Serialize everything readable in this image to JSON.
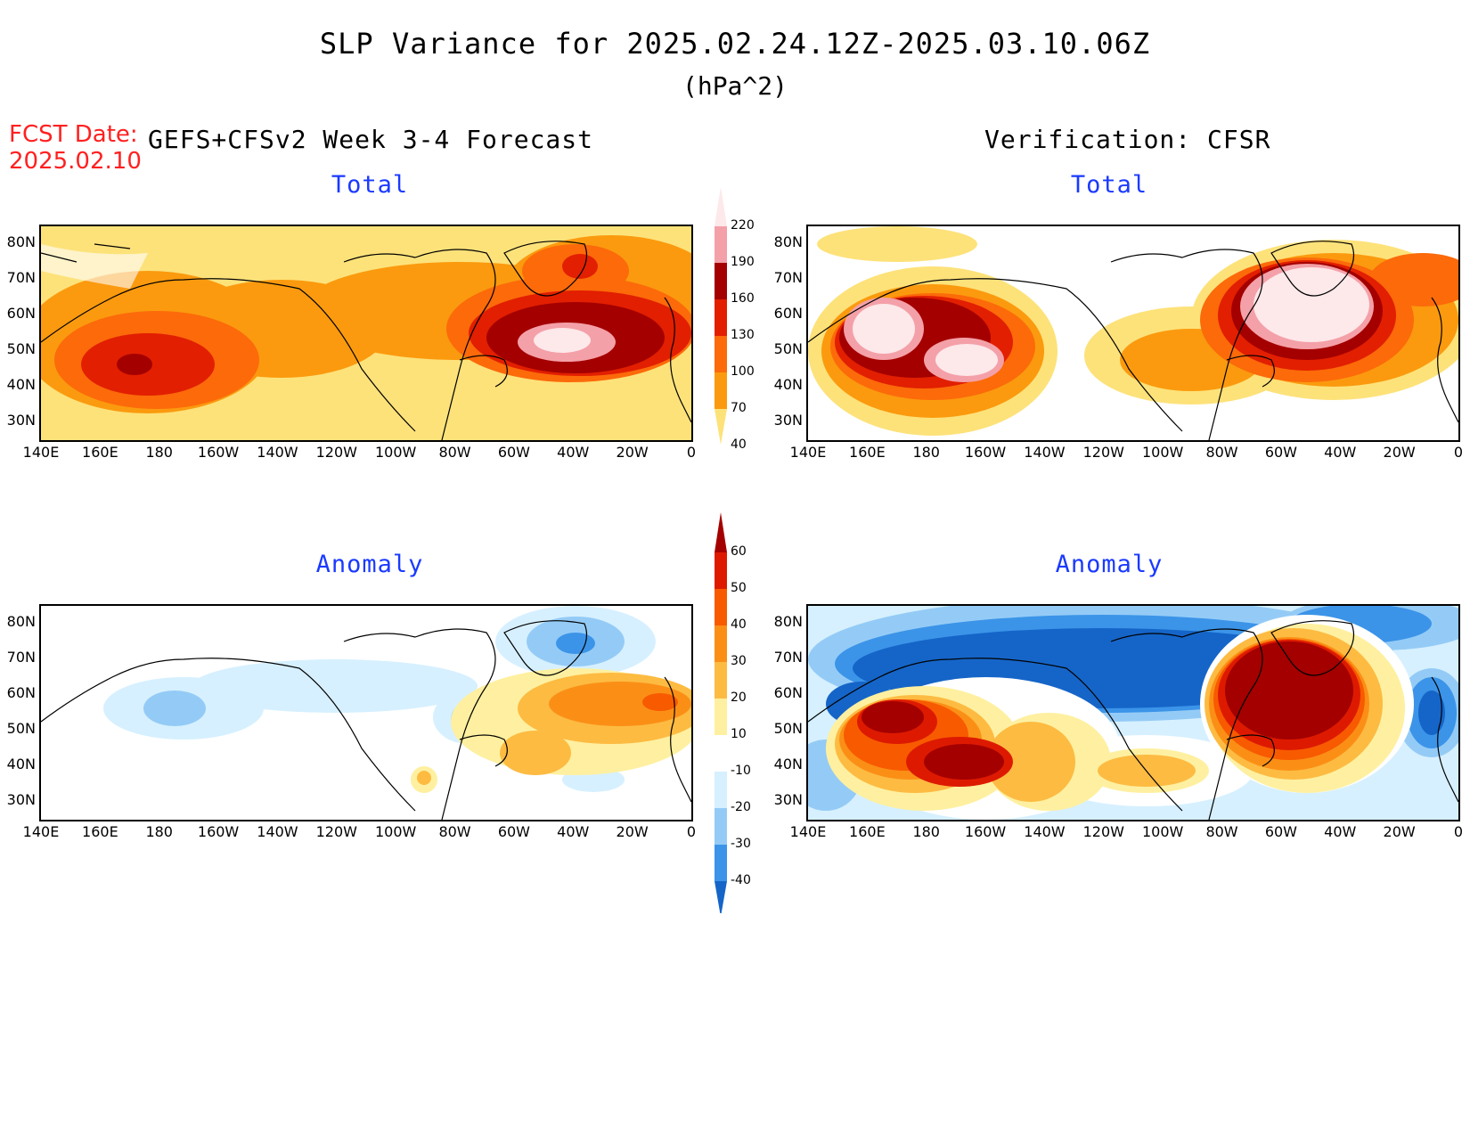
{
  "header": {
    "title": "SLP Variance for 2025.02.24.12Z-2025.03.10.06Z",
    "units": "(hPa^2)",
    "fcst_date_label": "FCST Date:",
    "fcst_date_value": "2025.02.10",
    "left_heading": "GEFS+CFSv2 Week 3-4 Forecast",
    "right_heading": "Verification: CFSR"
  },
  "panels": {
    "top_left_title": "Total",
    "top_right_title": "Total",
    "bottom_left_title": "Anomaly",
    "bottom_right_title": "Anomaly"
  },
  "axes": {
    "lat_labels": [
      "80N",
      "70N",
      "60N",
      "50N",
      "40N",
      "30N"
    ],
    "lon_labels": [
      "140E",
      "160E",
      "180",
      "160W",
      "140W",
      "120W",
      "100W",
      "80W",
      "60W",
      "40W",
      "20W",
      "0"
    ]
  },
  "colorbars": {
    "total": {
      "levels": [
        "220",
        "190",
        "160",
        "130",
        "100",
        "70",
        "40"
      ],
      "colors": [
        "#fde8ea",
        "#f4a0a8",
        "#a40000",
        "#e21f00",
        "#fc6a0a",
        "#fb9a0e",
        "#fde27a"
      ]
    },
    "anomaly": {
      "levels": [
        "60",
        "50",
        "40",
        "30",
        "20",
        "10",
        "-10",
        "-20",
        "-30",
        "-40"
      ],
      "colors": [
        "#a40000",
        "#dd1a00",
        "#f85a00",
        "#fb8f16",
        "#fdbb42",
        "#fef0a0",
        "#ffffff",
        "#d6f0ff",
        "#94cbf6",
        "#3b94e8",
        "#1565c8"
      ]
    }
  }
}
